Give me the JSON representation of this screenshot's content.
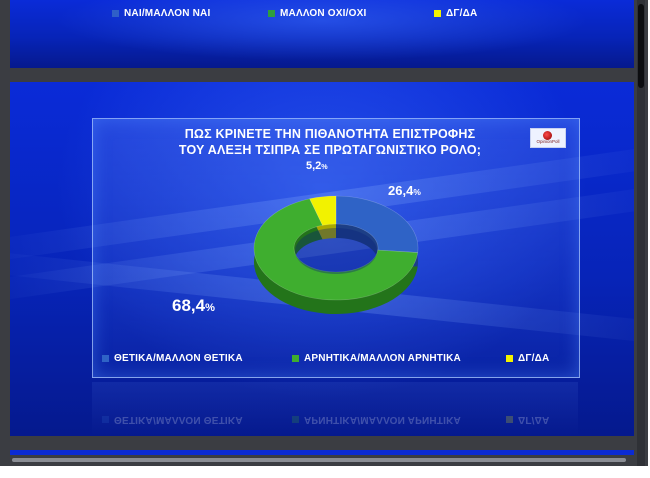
{
  "top_legend": [
    {
      "label": "ΝΑΙ/ΜΑΛΛΟΝ  ΝΑΙ",
      "color": "#2f5fc8"
    },
    {
      "label": "ΜΑΛΛΟΝ  ΟΧΙ/ΟΧΙ",
      "color": "#2f9e3e"
    },
    {
      "label": "ΔΓ/ΔΑ",
      "color": "#f2f200"
    }
  ],
  "slide": {
    "title_line1": "ΠΩΣ ΚΡΙΝΕΤΕ ΤΗΝ ΠΙΘΑΝΟΤΗΤΑ ΕΠΙΣΤΡΟΦΗΣ",
    "title_line2": "ΤΟΥ ΑΛΕΞΗ ΤΣΙΠΡΑ ΣΕ ΠΡΩΤΑΓΩΝΙΣΤΙΚΟ ΡΟΛΟ;",
    "logo_text": "OpinionPoll"
  },
  "chart_data": {
    "type": "pie",
    "categories": [
      "ΘΕΤΙΚΑ/ΜΑΛΛΟΝ  ΘΕΤΙΚΑ",
      "ΑΡΝΗΤΙΚΑ/ΜΑΛΛΟΝ  ΑΡΝΗΤΙΚΑ",
      "ΔΓ/ΔΑ"
    ],
    "values": [
      26.4,
      68.4,
      5.2
    ],
    "value_labels": [
      "26,4",
      "68,4",
      "5,2"
    ],
    "unit": "%",
    "colors": [
      "#2f63c6",
      "#3fae2f",
      "#f2f200"
    ],
    "legend": "bottom"
  }
}
